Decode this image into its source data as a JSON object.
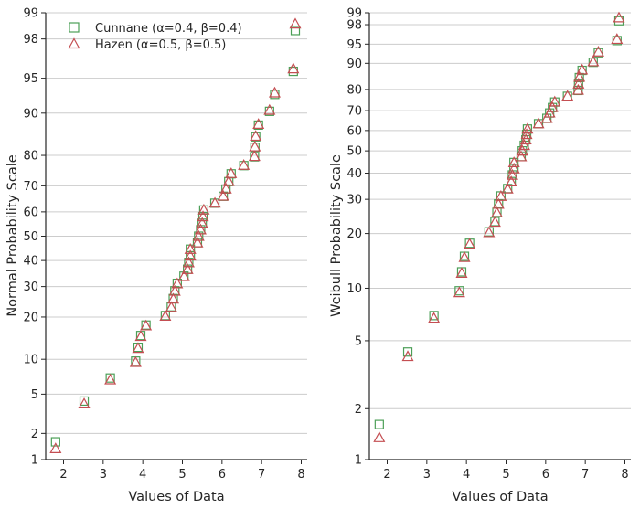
{
  "chart_data": [
    {
      "type": "scatter",
      "xlabel": "Values of Data",
      "ylabel": "Normal Probability Scale",
      "xlim": [
        1.55,
        8.15
      ],
      "xticks": [
        "2",
        "3",
        "4",
        "5",
        "6",
        "7",
        "8"
      ],
      "yticks": [
        "1",
        "2",
        "5",
        "10",
        "20",
        "30",
        "40",
        "50",
        "60",
        "70",
        "80",
        "90",
        "95",
        "98",
        "99"
      ],
      "legend": [
        "Cunnane (α=0.4, β=0.4)",
        "Hazen (α=0.5, β=0.5)"
      ],
      "legend_position": "top-left",
      "grid": "horizontal"
    },
    {
      "type": "scatter",
      "xlabel": "Values of Data",
      "ylabel": "Weibull Probability Scale",
      "xlim": [
        1.55,
        8.15
      ],
      "xticks": [
        "2",
        "3",
        "4",
        "5",
        "6",
        "7",
        "8"
      ],
      "yticks": [
        "1",
        "2",
        "5",
        "10",
        "20",
        "30",
        "40",
        "50",
        "60",
        "70",
        "80",
        "90",
        "95",
        "98",
        "99"
      ],
      "grid": "horizontal"
    }
  ],
  "data_x": [
    1.8,
    2.52,
    3.18,
    3.82,
    3.88,
    3.95,
    4.08,
    4.57,
    4.72,
    4.77,
    4.81,
    4.87,
    5.04,
    5.13,
    5.16,
    5.2,
    5.2,
    5.38,
    5.41,
    5.46,
    5.5,
    5.52,
    5.54,
    5.82,
    6.03,
    6.1,
    6.17,
    6.23,
    6.55,
    6.82,
    6.83,
    6.85,
    6.92,
    7.2,
    7.33,
    7.8,
    7.85
  ],
  "series": [
    {
      "name": "Cunnane (α=0.4, β=0.4)",
      "marker": "square",
      "color": "#4c9f57"
    },
    {
      "name": "Hazen (α=0.5, β=0.5)",
      "marker": "triangle",
      "color": "#c44e52"
    }
  ]
}
